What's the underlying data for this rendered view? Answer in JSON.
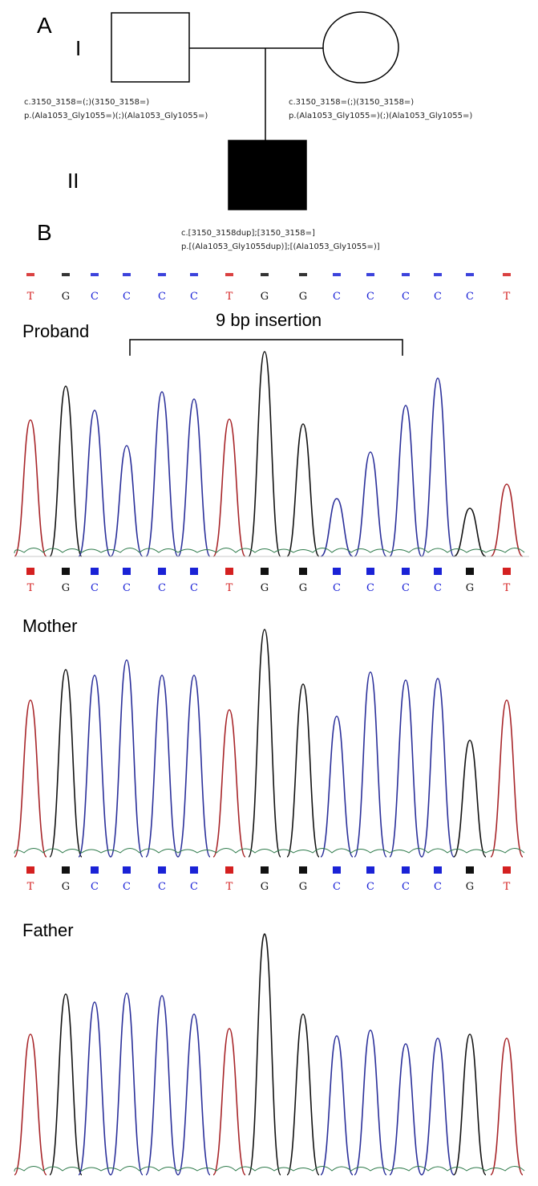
{
  "panel_a": {
    "letter": "A",
    "generation_1": "I",
    "generation_2": "II",
    "father_variant": {
      "cdna": "c.3150_3158=(;)(3150_3158=)",
      "protein": "p.(Ala1053_Gly1055=)(;)(Ala1053_Gly1055=)"
    },
    "mother_variant": {
      "cdna": "c.3150_3158=(;)(3150_3158=)",
      "protein": "p.(Ala1053_Gly1055=)(;)(Ala1053_Gly1055=)"
    },
    "proband_variant": {
      "cdna": "c.[3150_3158dup];[3150_3158=]",
      "protein": "p.[(Ala1053_Gly1055dup)];[(Ala1053_Gly1055=)]"
    }
  },
  "panel_b": {
    "letter": "B",
    "insertion_label": "9 bp insertion",
    "colors": {
      "T": "#d42020",
      "G": "#111111",
      "C": "#1a22d6",
      "A": "#1f7a3a"
    },
    "tracks": [
      {
        "label": "Proband",
        "sequence": [
          "T",
          "G",
          "C",
          "C",
          "C",
          "C",
          "T",
          "G",
          "G",
          "C",
          "C",
          "C",
          "C",
          "C",
          "T"
        ],
        "second_sequence": [
          "T",
          "G",
          "C",
          "C",
          "C",
          "C",
          "T",
          "G",
          "G",
          "C",
          "C",
          "C",
          "C",
          "G",
          "T"
        ]
      },
      {
        "label": "Mother",
        "sequence": [
          "T",
          "G",
          "C",
          "C",
          "C",
          "C",
          "T",
          "G",
          "G",
          "C",
          "C",
          "C",
          "C",
          "G",
          "T"
        ]
      },
      {
        "label": "Father"
      }
    ]
  }
}
